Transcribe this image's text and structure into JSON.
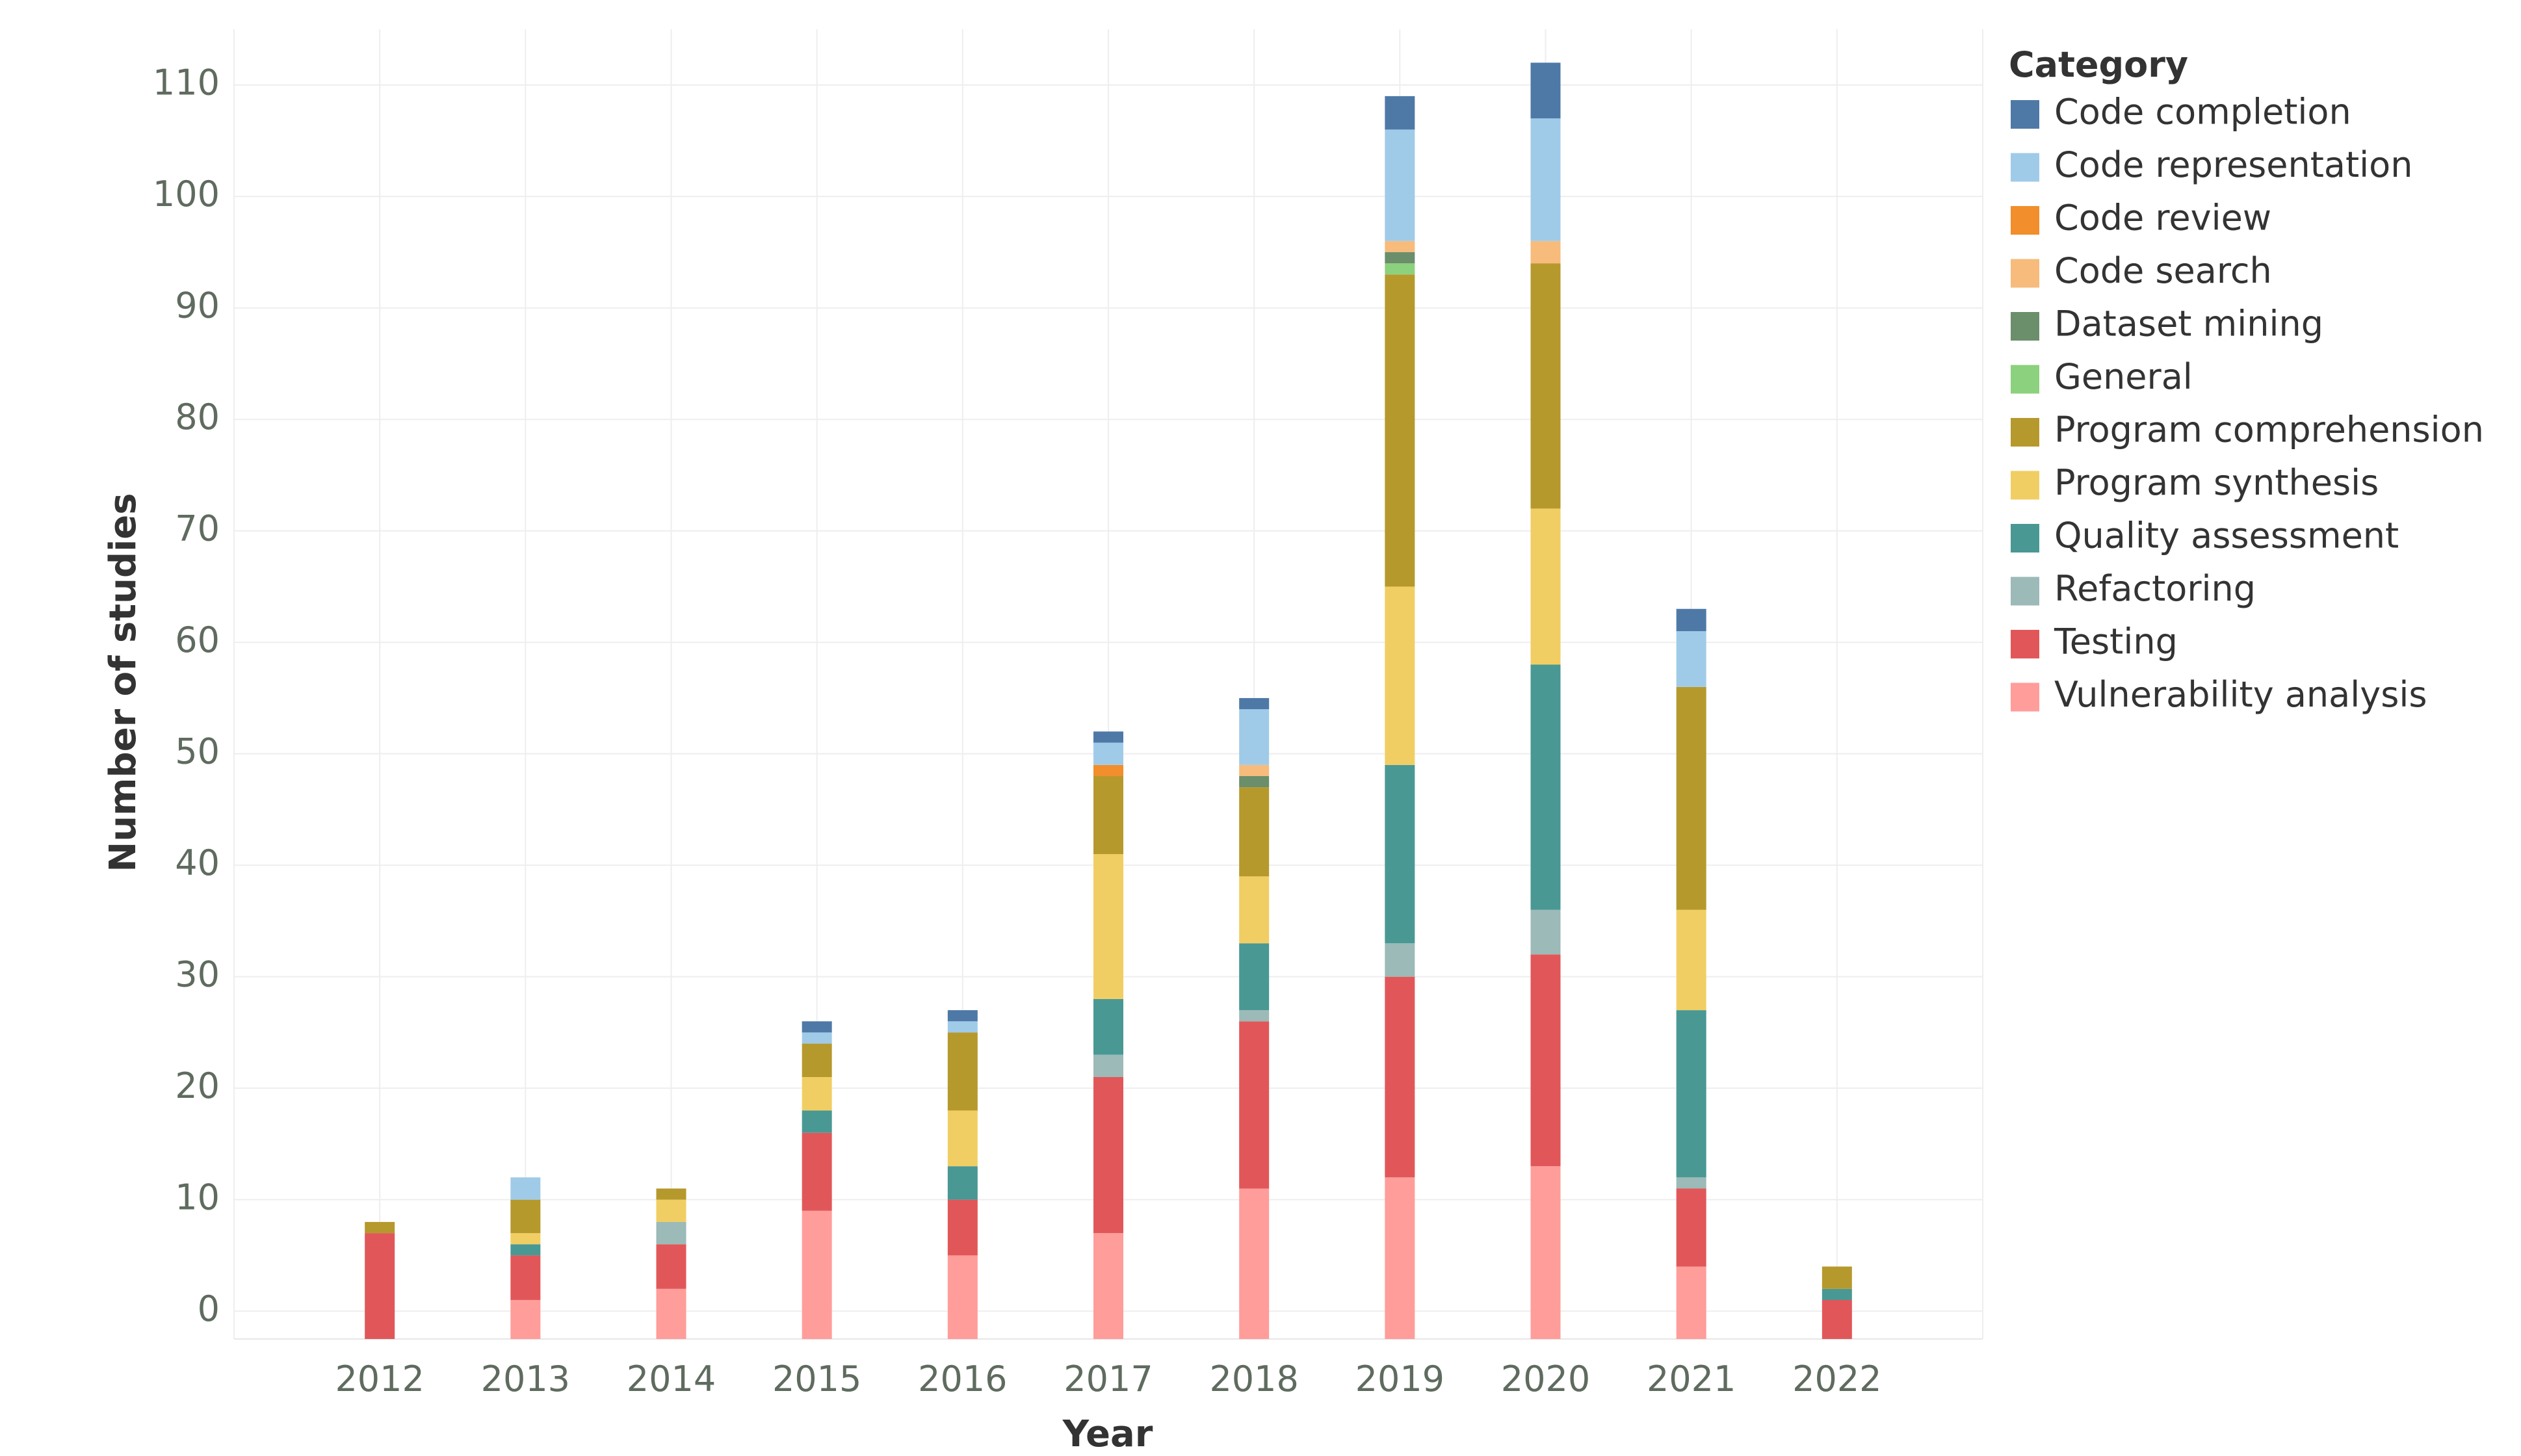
{
  "chart_data": {
    "type": "bar",
    "stacked": true,
    "xlabel": "Year",
    "ylabel": "Number of studies",
    "ylim": [
      -2.5,
      115
    ],
    "yticks": [
      0,
      10,
      20,
      30,
      40,
      50,
      60,
      70,
      80,
      90,
      100,
      110
    ],
    "grid": true,
    "legend_title": "Category",
    "legend_position": "right",
    "categories": [
      "2012",
      "2013",
      "2014",
      "2015",
      "2016",
      "2017",
      "2018",
      "2019",
      "2020",
      "2021",
      "2022"
    ],
    "series": [
      {
        "name": "Vulnerability analysis",
        "color": "#ff9d9a",
        "values": [
          0,
          1,
          2,
          9,
          5,
          7,
          11,
          12,
          13,
          4,
          0
        ]
      },
      {
        "name": "Testing",
        "color": "#e15759",
        "values": [
          7,
          4,
          4,
          7,
          5,
          14,
          15,
          18,
          19,
          7,
          1
        ]
      },
      {
        "name": "Refactoring",
        "color": "#9cbab7",
        "values": [
          0,
          0,
          2,
          0,
          0,
          2,
          1,
          3,
          4,
          1,
          0
        ]
      },
      {
        "name": "Quality assessment",
        "color": "#499894",
        "values": [
          0,
          1,
          0,
          2,
          3,
          5,
          6,
          16,
          22,
          15,
          1
        ]
      },
      {
        "name": "Program synthesis",
        "color": "#f1ce63",
        "values": [
          0,
          1,
          2,
          3,
          5,
          13,
          6,
          16,
          14,
          9,
          0
        ]
      },
      {
        "name": "Program comprehension",
        "color": "#b6992d",
        "values": [
          1,
          3,
          1,
          3,
          7,
          7,
          8,
          28,
          22,
          20,
          2
        ]
      },
      {
        "name": "General",
        "color": "#8cd17d",
        "values": [
          0,
          0,
          0,
          0,
          0,
          0,
          0,
          1,
          0,
          0,
          0
        ]
      },
      {
        "name": "Dataset mining",
        "color": "#6b8e6b",
        "values": [
          0,
          0,
          0,
          0,
          0,
          0,
          1,
          1,
          0,
          0,
          0
        ]
      },
      {
        "name": "Code search",
        "color": "#f7bb7c",
        "values": [
          0,
          0,
          0,
          0,
          0,
          0,
          1,
          1,
          2,
          0,
          0
        ]
      },
      {
        "name": "Code review",
        "color": "#f28e2b",
        "values": [
          0,
          0,
          0,
          0,
          0,
          1,
          0,
          0,
          0,
          0,
          0
        ]
      },
      {
        "name": "Code representation",
        "color": "#a0cbe8",
        "values": [
          0,
          2,
          0,
          1,
          1,
          2,
          5,
          10,
          11,
          5,
          0
        ]
      },
      {
        "name": "Code completion",
        "color": "#4e79a7",
        "values": [
          0,
          0,
          0,
          1,
          1,
          1,
          1,
          3,
          5,
          2,
          0
        ]
      }
    ],
    "legend_order": [
      "Code completion",
      "Code representation",
      "Code review",
      "Code search",
      "Dataset mining",
      "General",
      "Program comprehension",
      "Program synthesis",
      "Quality assessment",
      "Refactoring",
      "Testing",
      "Vulnerability analysis"
    ]
  }
}
